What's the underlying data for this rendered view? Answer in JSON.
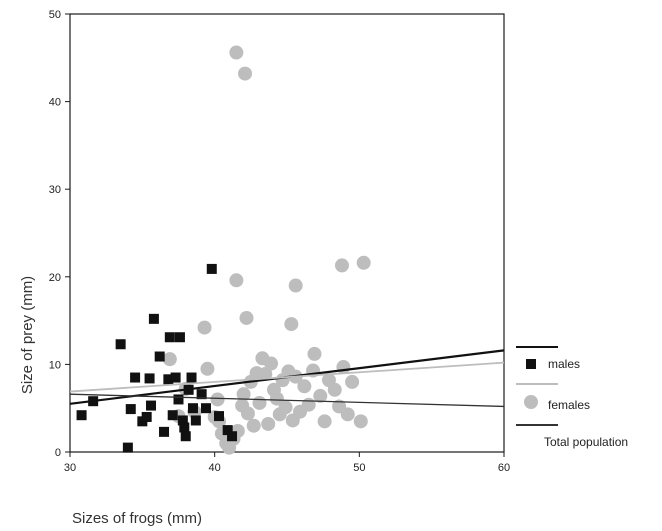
{
  "chart_data": {
    "type": "scatter",
    "xlabel": "Sizes of frogs (mm)",
    "ylabel": "Size of prey  (mm)",
    "xlim": [
      30,
      60
    ],
    "ylim": [
      0,
      50
    ],
    "xticks": [
      "30",
      "40",
      "50",
      "60"
    ],
    "yticks": [
      "0",
      "10",
      "20",
      "30",
      "40",
      "50"
    ],
    "grid": false,
    "legend_position": "right",
    "series": [
      {
        "name": "males",
        "marker": "square",
        "color": "#111111",
        "points": [
          [
            30.8,
            4.2
          ],
          [
            31.6,
            5.8
          ],
          [
            33.5,
            12.3
          ],
          [
            34.0,
            0.5
          ],
          [
            34.2,
            4.9
          ],
          [
            34.5,
            8.5
          ],
          [
            35.0,
            3.5
          ],
          [
            35.3,
            4.0
          ],
          [
            35.5,
            8.4
          ],
          [
            35.6,
            5.3
          ],
          [
            35.8,
            15.2
          ],
          [
            36.2,
            10.9
          ],
          [
            36.5,
            2.3
          ],
          [
            36.8,
            8.3
          ],
          [
            36.9,
            13.1
          ],
          [
            37.1,
            4.2
          ],
          [
            37.3,
            8.5
          ],
          [
            37.5,
            6.0
          ],
          [
            37.6,
            13.1
          ],
          [
            37.8,
            3.6
          ],
          [
            37.9,
            2.8
          ],
          [
            38.0,
            1.8
          ],
          [
            38.2,
            7.1
          ],
          [
            38.4,
            8.5
          ],
          [
            38.5,
            5.0
          ],
          [
            38.7,
            3.6
          ],
          [
            39.1,
            6.6
          ],
          [
            39.4,
            5.0
          ],
          [
            39.8,
            20.9
          ],
          [
            40.3,
            4.1
          ],
          [
            40.9,
            2.5
          ],
          [
            41.2,
            1.8
          ]
        ]
      },
      {
        "name": "females",
        "marker": "circle",
        "color": "#bdbdbd",
        "points": [
          [
            41.5,
            45.6
          ],
          [
            42.1,
            43.2
          ],
          [
            41.5,
            19.6
          ],
          [
            42.2,
            15.3
          ],
          [
            45.6,
            19.0
          ],
          [
            48.8,
            21.3
          ],
          [
            50.3,
            21.6
          ],
          [
            39.3,
            14.2
          ],
          [
            45.3,
            14.6
          ],
          [
            46.9,
            11.2
          ],
          [
            40.0,
            4.0
          ],
          [
            40.3,
            3.5
          ],
          [
            40.5,
            2.1
          ],
          [
            40.8,
            1.0
          ],
          [
            41.0,
            0.5
          ],
          [
            41.3,
            1.5
          ],
          [
            41.6,
            2.4
          ],
          [
            41.9,
            5.3
          ],
          [
            42.0,
            6.6
          ],
          [
            42.3,
            4.4
          ],
          [
            42.5,
            8.0
          ],
          [
            42.7,
            3.0
          ],
          [
            42.9,
            9.0
          ],
          [
            43.1,
            5.6
          ],
          [
            43.3,
            10.7
          ],
          [
            43.5,
            8.9
          ],
          [
            43.7,
            3.2
          ],
          [
            43.9,
            10.1
          ],
          [
            44.1,
            7.1
          ],
          [
            44.3,
            6.1
          ],
          [
            44.5,
            4.3
          ],
          [
            44.7,
            8.2
          ],
          [
            44.9,
            5.1
          ],
          [
            45.1,
            9.2
          ],
          [
            45.4,
            3.6
          ],
          [
            45.6,
            8.6
          ],
          [
            45.9,
            4.6
          ],
          [
            46.2,
            7.5
          ],
          [
            46.5,
            5.4
          ],
          [
            46.8,
            9.3
          ],
          [
            47.3,
            6.4
          ],
          [
            47.6,
            3.5
          ],
          [
            47.9,
            8.2
          ],
          [
            48.3,
            7.1
          ],
          [
            48.6,
            5.2
          ],
          [
            48.9,
            9.7
          ],
          [
            49.2,
            4.3
          ],
          [
            49.5,
            8.0
          ],
          [
            50.1,
            3.5
          ],
          [
            38.0,
            7.2
          ],
          [
            38.6,
            4.6
          ],
          [
            39.5,
            9.5
          ],
          [
            36.9,
            10.6
          ],
          [
            37.5,
            4.1
          ],
          [
            40.2,
            6.0
          ]
        ]
      }
    ],
    "trend_lines": [
      {
        "name": "males",
        "color": "#111111",
        "width": 2.2,
        "from": [
          30,
          5.5
        ],
        "to": [
          60,
          11.6
        ]
      },
      {
        "name": "females",
        "color": "#bdbdbd",
        "width": 1.8,
        "from": [
          30,
          6.9
        ],
        "to": [
          60,
          10.2
        ]
      },
      {
        "name": "Total population",
        "color": "#333333",
        "width": 1.3,
        "from": [
          30,
          6.6
        ],
        "to": [
          60,
          5.2
        ]
      }
    ],
    "legend": [
      {
        "label": "males",
        "marker": "square",
        "line_color": "#111111"
      },
      {
        "label": "females",
        "marker": "circle",
        "line_color": "#bdbdbd"
      },
      {
        "label": "Total population",
        "marker": "none",
        "line_color": "#333333"
      }
    ]
  }
}
